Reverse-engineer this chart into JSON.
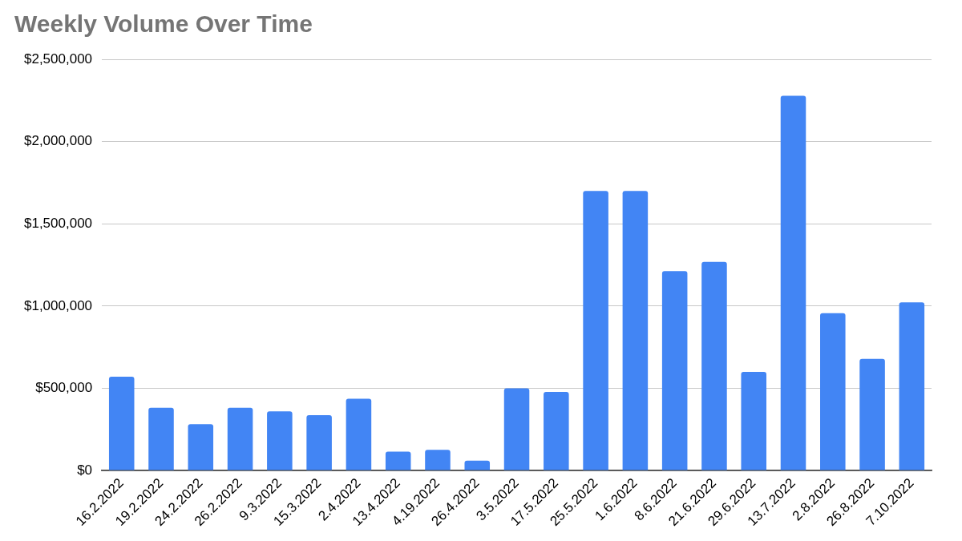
{
  "chart_data": {
    "type": "bar",
    "title": "Weekly Volume Over Time",
    "categories": [
      "16.2.2022",
      "19.2.2022",
      "24.2.2022",
      "26.2.2022",
      "9.3.2022",
      "15.3.2022",
      "2.4.2022",
      "13.4.2022",
      "4.19.2022",
      "26.4.2022",
      "3.5.2022",
      "17.5.2022",
      "25.5.2022",
      "1.6.2022",
      "8.6.2022",
      "21.6.2022",
      "29.6.2022",
      "13.7.2022",
      "2.8.2022",
      "26.8.2022",
      "7.10.2022"
    ],
    "values": [
      570000,
      382000,
      282000,
      382000,
      360000,
      337000,
      437000,
      115000,
      126000,
      60000,
      500000,
      478000,
      1700000,
      1700000,
      1212000,
      1268000,
      600000,
      2278000,
      957000,
      679000,
      1023000
    ],
    "color": "#4285f4",
    "ylim": [
      0,
      2500000
    ],
    "yticks": [
      {
        "value": 0,
        "label": "$0"
      },
      {
        "value": 500000,
        "label": "$500,000"
      },
      {
        "value": 1000000,
        "label": "$1,000,000"
      },
      {
        "value": 1500000,
        "label": "$1,500,000"
      },
      {
        "value": 2000000,
        "label": "$2,000,000"
      },
      {
        "value": 2500000,
        "label": "$2,500,000"
      }
    ],
    "grid": "y",
    "legend": false
  }
}
